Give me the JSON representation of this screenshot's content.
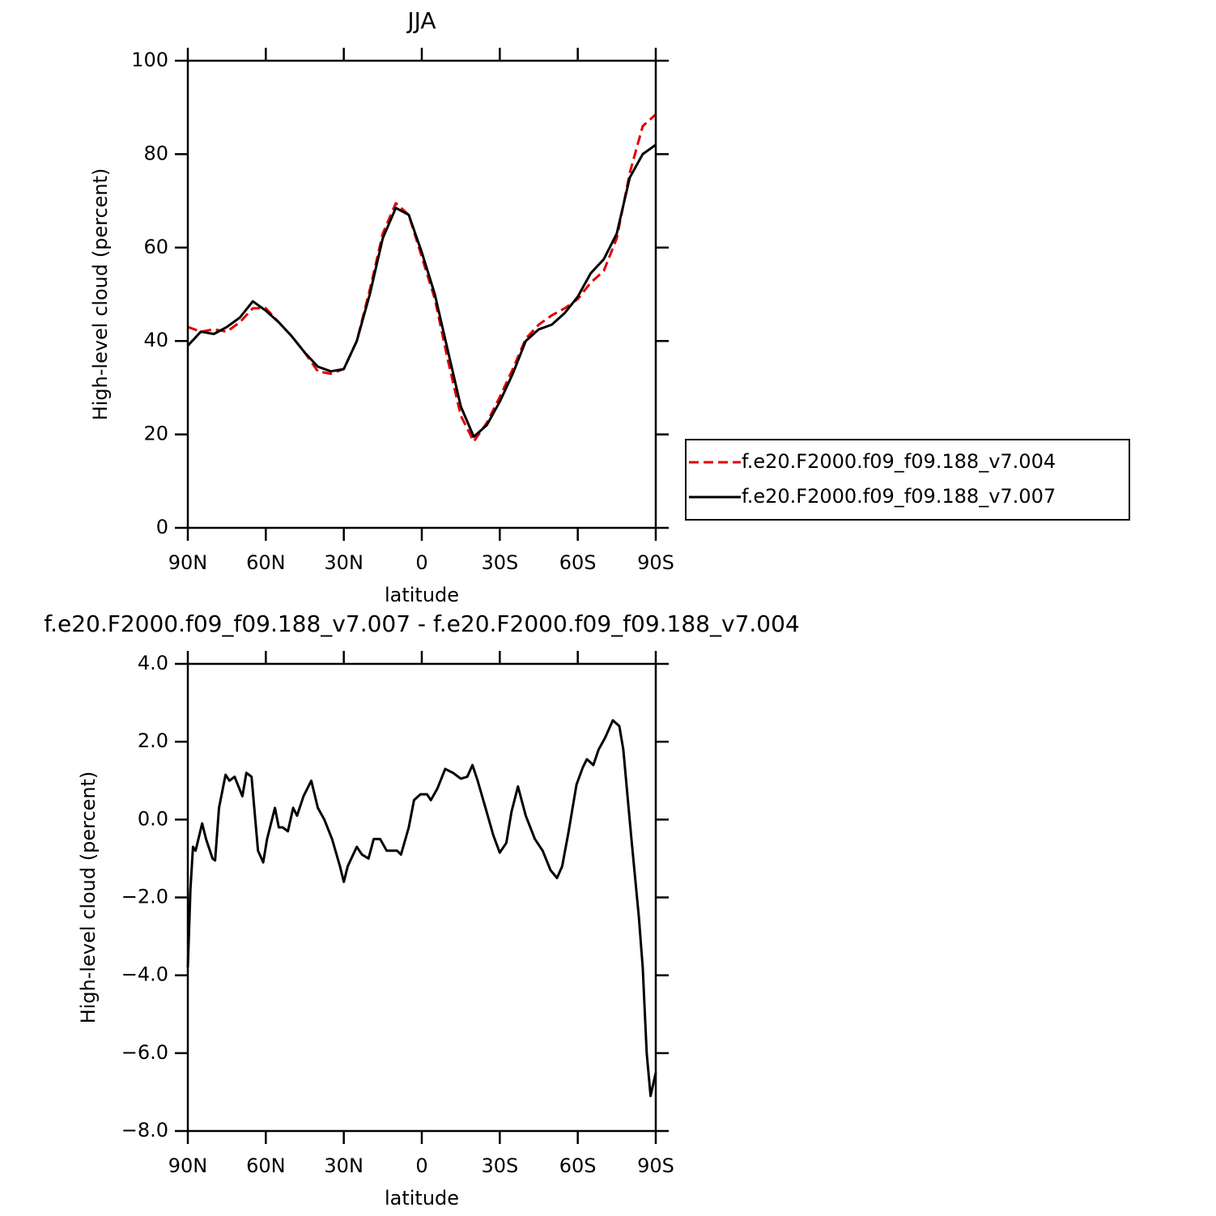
{
  "chart_data": [
    {
      "type": "line",
      "title": "JJA",
      "xlabel": "latitude",
      "ylabel": "High-level cloud (percent)",
      "x": [
        90,
        85,
        80,
        75,
        70,
        65,
        60,
        55,
        50,
        45,
        40,
        35,
        30,
        25,
        20,
        15,
        10,
        5,
        0,
        -5,
        -10,
        -15,
        -20,
        -25,
        -30,
        -35,
        -40,
        -45,
        -50,
        -55,
        -60,
        -65,
        -70,
        -75,
        -80,
        -85,
        -90
      ],
      "series": [
        {
          "name": "f.e20.F2000.f09_f09.188_v7.004",
          "color": "#e00000",
          "style": "dashed",
          "values": [
            43,
            42,
            42.5,
            42,
            44,
            47,
            47,
            44,
            41,
            37.5,
            33.5,
            33,
            34,
            40,
            51,
            63,
            69.5,
            67,
            58,
            49,
            36,
            24,
            18.5,
            22.5,
            28,
            34,
            40.5,
            43.5,
            45.5,
            47,
            49,
            52.5,
            55,
            62,
            76,
            86,
            88.5
          ]
        },
        {
          "name": "f.e20.F2000.f09_f09.188_v7.007",
          "color": "#000000",
          "style": "solid",
          "values": [
            39,
            42,
            41.5,
            43,
            45,
            48.5,
            46.5,
            44,
            41,
            37.5,
            34.5,
            33.5,
            34,
            40,
            50,
            62,
            68.5,
            67,
            59,
            50,
            38,
            26,
            19.5,
            22,
            27,
            33,
            40,
            42.5,
            43.5,
            46,
            49.5,
            54.5,
            57.5,
            63,
            75,
            80,
            82
          ]
        }
      ],
      "xlim": [
        90,
        -90
      ],
      "xticks": [
        {
          "value": 90,
          "label": "90N"
        },
        {
          "value": 60,
          "label": "60N"
        },
        {
          "value": 30,
          "label": "30N"
        },
        0,
        {
          "value": -30,
          "label": "30S"
        },
        {
          "value": -60,
          "label": "60S"
        },
        {
          "value": -90,
          "label": "90S"
        }
      ],
      "ylim": [
        0,
        100
      ],
      "yticks": [
        0,
        20,
        40,
        60,
        80,
        100
      ],
      "legend": "right"
    },
    {
      "type": "line",
      "title": "f.e20.F2000.f09_f09.188_v7.007 - f.e20.F2000.f09_f09.188_v7.004",
      "xlabel": "latitude",
      "ylabel": "High-level cloud (percent)",
      "x": [
        90,
        89,
        88,
        87,
        84.5,
        83,
        80.5,
        79.5,
        78,
        75.5,
        74,
        72,
        69,
        67.5,
        65.5,
        63,
        61,
        59.5,
        56.5,
        55,
        53.5,
        51.5,
        49.5,
        48,
        45.5,
        42.5,
        40,
        37.5,
        34.5,
        31.5,
        30,
        28.5,
        25,
        23,
        20.5,
        18.5,
        16,
        13.5,
        9.5,
        8,
        5,
        3,
        0.5,
        -2,
        -3.5,
        -6,
        -9,
        -12,
        -15,
        -17.5,
        -19.5,
        -21.5,
        -24.5,
        -27.5,
        -30,
        -32.5,
        -34.5,
        -37,
        -40,
        -43.5,
        -46.5,
        -49.5,
        -52,
        -54,
        -56.5,
        -59.5,
        -62,
        -63.5,
        -66,
        -68,
        -70.5,
        -73.5,
        -76,
        -77.5,
        -80.5,
        -83.5,
        -85,
        -86.5,
        -88,
        -90
      ],
      "series": [
        {
          "color": "#000000",
          "style": "solid",
          "values": [
            -3.8,
            -1.8,
            -0.7,
            -0.8,
            -0.1,
            -0.5,
            -1.0,
            -1.05,
            0.3,
            1.15,
            1.0,
            1.1,
            0.6,
            1.2,
            1.1,
            -0.8,
            -1.1,
            -0.5,
            0.3,
            -0.2,
            -0.2,
            -0.3,
            0.3,
            0.1,
            0.6,
            1.0,
            0.3,
            0.0,
            -0.5,
            -1.2,
            -1.6,
            -1.2,
            -0.7,
            -0.9,
            -1.0,
            -0.5,
            -0.5,
            -0.8,
            -0.8,
            -0.9,
            -0.2,
            0.5,
            0.65,
            0.65,
            0.5,
            0.8,
            1.3,
            1.2,
            1.05,
            1.1,
            1.4,
            1.0,
            0.3,
            -0.4,
            -0.85,
            -0.6,
            0.2,
            0.85,
            0.1,
            -0.5,
            -0.8,
            -1.3,
            -1.5,
            -1.2,
            -0.3,
            0.9,
            1.35,
            1.55,
            1.4,
            1.8,
            2.1,
            2.55,
            2.4,
            1.8,
            -0.4,
            -2.5,
            -3.8,
            -6.0,
            -7.1,
            -6.5
          ]
        }
      ],
      "xlim": [
        90,
        -90
      ],
      "xticks": [
        {
          "value": 90,
          "label": "90N"
        },
        {
          "value": 60,
          "label": "60N"
        },
        {
          "value": 30,
          "label": "30N"
        },
        0,
        {
          "value": -30,
          "label": "30S"
        },
        {
          "value": -60,
          "label": "60S"
        },
        {
          "value": -90,
          "label": "90S"
        }
      ],
      "ylim": [
        -8,
        4
      ],
      "yticks": [
        {
          "value": -8,
          "label": "−8.0"
        },
        {
          "value": -6,
          "label": "−6.0"
        },
        {
          "value": -4,
          "label": "−4.0"
        },
        {
          "value": -2,
          "label": "−2.0"
        },
        {
          "value": 0,
          "label": "0.0"
        },
        {
          "value": 2,
          "label": "2.0"
        },
        {
          "value": 4,
          "label": "4.0"
        }
      ]
    }
  ]
}
